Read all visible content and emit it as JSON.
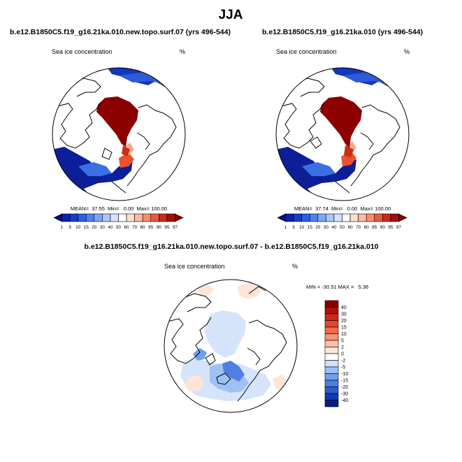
{
  "page_title": "JJA",
  "panels": [
    {
      "run_title": "b.e12.B1850C5.f19_g16.21ka.010.new.topo.surf.07 (yrs 496-544)",
      "field_label": "Sea ice concentration",
      "units": "%",
      "stats": "MEAN=  37.55  Min=   0.00  Max= 100.00"
    },
    {
      "run_title": "b.e12.B1850C5.f19_g16.21ka.010 (yrs 496-544)",
      "field_label": "Sea ice concentration",
      "units": "%",
      "stats": "MEAN=  37.74  Min=   0.00  Max= 100.00"
    }
  ],
  "diff_panel": {
    "run_title": "b.e12.B1850C5.f19_g16.21ka.010.new.topo.surf.07 - b.e12.B1850C5.f19_g16.21ka.010",
    "field_label": "Sea ice concentration",
    "units": "%",
    "stats": "MIN = -30.51 MAX =   5.36"
  },
  "chart_data": [
    {
      "type": "heatmap",
      "projection": "north-polar-stereographic",
      "title": "b.e12.B1850C5.f19_g16.21ka.010.new.topo.surf.07 (yrs 496-544)",
      "variable": "Sea ice concentration",
      "units": "%",
      "mean": 37.55,
      "min": 0.0,
      "max": 100.0,
      "colorbar_levels": [
        "1",
        "5",
        "10",
        "15",
        "20",
        "30",
        "40",
        "50",
        "60",
        "70",
        "80",
        "85",
        "90",
        "95",
        "97"
      ],
      "colorbar_colors": [
        "#0a0a78",
        "#0d22a8",
        "#1440cc",
        "#2a5fe0",
        "#4d82ee",
        "#7aa6f4",
        "#a8c6f8",
        "#d4e4fb",
        "#ffffff",
        "#fde0d2",
        "#fbbba2",
        "#f58e70",
        "#e85a3e",
        "#cc2a18",
        "#a80c08",
        "#7c0000"
      ]
    },
    {
      "type": "heatmap",
      "projection": "north-polar-stereographic",
      "title": "b.e12.B1850C5.f19_g16.21ka.010 (yrs 496-544)",
      "variable": "Sea ice concentration",
      "units": "%",
      "mean": 37.74,
      "min": 0.0,
      "max": 100.0,
      "colorbar_levels": [
        "1",
        "5",
        "10",
        "15",
        "20",
        "30",
        "40",
        "50",
        "60",
        "70",
        "80",
        "85",
        "90",
        "95",
        "97"
      ],
      "colorbar_colors": [
        "#0a0a78",
        "#0d22a8",
        "#1440cc",
        "#2a5fe0",
        "#4d82ee",
        "#7aa6f4",
        "#a8c6f8",
        "#d4e4fb",
        "#ffffff",
        "#fde0d2",
        "#fbbba2",
        "#f58e70",
        "#e85a3e",
        "#cc2a18",
        "#a80c08",
        "#7c0000"
      ]
    },
    {
      "type": "heatmap",
      "projection": "north-polar-stereographic",
      "title": "b.e12.B1850C5.f19_g16.21ka.010.new.topo.surf.07 - b.e12.B1850C5.f19_g16.21ka.010",
      "variable": "Sea ice concentration",
      "units": "%",
      "min": -30.51,
      "max": 5.36,
      "colorbar_levels": [
        "40",
        "30",
        "20",
        "15",
        "10",
        "5",
        "2",
        "0",
        "-2",
        "-5",
        "-10",
        "-15",
        "-20",
        "-30",
        "-40"
      ],
      "colorbar_colors": [
        "#8a0000",
        "#b30d0d",
        "#d42418",
        "#e8442c",
        "#f26a4a",
        "#f79372",
        "#fbbfa4",
        "#fde4d6",
        "#ffffff",
        "#cfe0fa",
        "#9cc0f4",
        "#6f9eec",
        "#4a7ee0",
        "#2c5ccd",
        "#1438b0",
        "#081e86"
      ]
    }
  ]
}
